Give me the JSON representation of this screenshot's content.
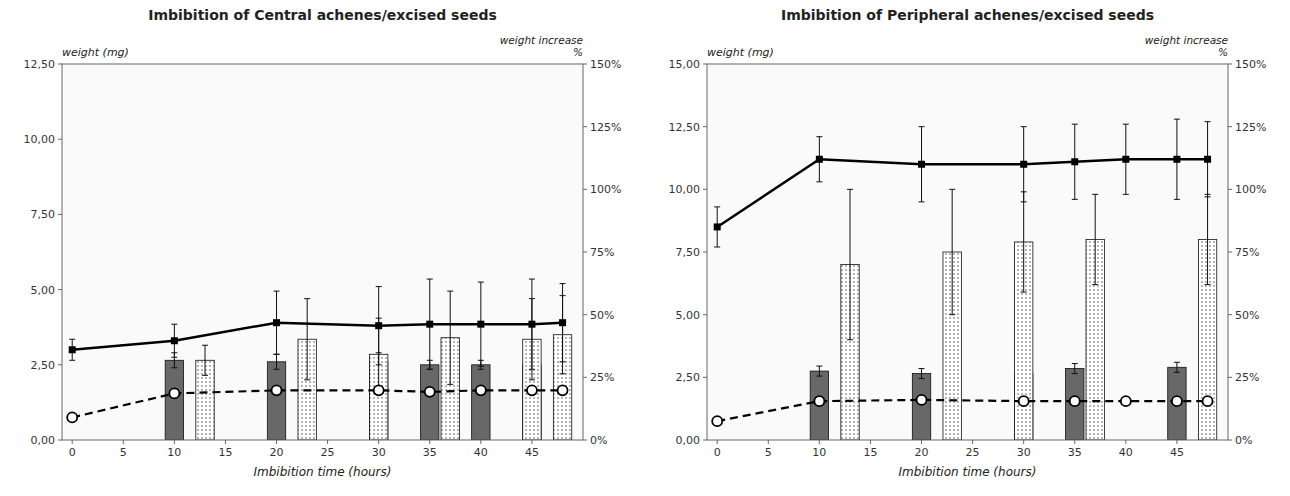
{
  "chart_data": [
    {
      "type": "bar",
      "title": "Imbibition of Central achenes/excised seeds",
      "xlabel": "Imbibition time (hours)",
      "ylabel": "weight (mg)",
      "y2label": "weight increase\n%",
      "grid": false,
      "xlim": [
        -1,
        50
      ],
      "xticks": [
        0,
        5,
        10,
        15,
        20,
        25,
        30,
        35,
        40,
        45
      ],
      "ylim": [
        0,
        12.5
      ],
      "yticks": [
        {
          "value": 0.0,
          "label": "0,00"
        },
        {
          "value": 2.5,
          "label": "2,50"
        },
        {
          "value": 5.0,
          "label": "5,00"
        },
        {
          "value": 7.5,
          "label": "7,50"
        },
        {
          "value": 10.0,
          "label": "10,00"
        },
        {
          "value": 12.5,
          "label": "12,50"
        }
      ],
      "y2lim": [
        0,
        150
      ],
      "y2ticks": [
        {
          "value": 0,
          "label": "0%"
        },
        {
          "value": 25,
          "label": "25%"
        },
        {
          "value": 50,
          "label": "50%"
        },
        {
          "value": 75,
          "label": "75%"
        },
        {
          "value": 100,
          "label": "100%"
        },
        {
          "value": 125,
          "label": "125%"
        },
        {
          "value": 150,
          "label": "150%"
        }
      ],
      "series": [
        {
          "type": "bar",
          "color": "#686868",
          "x": [
            10,
            20,
            30,
            35,
            40,
            45
          ],
          "values": [
            2.65,
            2.6,
            2.6,
            2.5,
            2.5,
            2.5
          ],
          "errors": [
            0.25,
            0.25,
            0.3,
            0.15,
            0.15,
            0.2
          ]
        },
        {
          "type": "bar",
          "color": "white",
          "x": [
            13,
            23,
            30,
            37,
            45,
            48
          ],
          "values": [
            2.65,
            3.35,
            2.85,
            3.4,
            3.35,
            3.5
          ],
          "errors": [
            0.5,
            1.35,
            1.2,
            1.55,
            1.35,
            1.3
          ]
        },
        {
          "type": "line",
          "color": "black",
          "marker": "square",
          "line_style": "solid",
          "x": [
            0,
            10,
            20,
            30,
            35,
            40,
            45,
            48
          ],
          "values": [
            3.0,
            3.3,
            3.9,
            3.8,
            3.85,
            3.85,
            3.85,
            3.9
          ],
          "errors": [
            0.35,
            0.55,
            1.05,
            1.3,
            1.5,
            1.4,
            1.5,
            1.3
          ]
        },
        {
          "type": "line",
          "color": "black",
          "marker": "circle",
          "line_style": "dashed",
          "x": [
            0,
            10,
            20,
            30,
            35,
            40,
            45,
            48
          ],
          "values": [
            0.75,
            1.55,
            1.65,
            1.65,
            1.6,
            1.65,
            1.65,
            1.65
          ],
          "errors": [
            0.08,
            0.12,
            0.1,
            0.1,
            0.08,
            0.08,
            0.08,
            0.08
          ]
        }
      ]
    },
    {
      "type": "bar",
      "title": "Imbibition of Peripheral achenes/excised seeds",
      "xlabel": "Imbibition time (hours)",
      "ylabel": "weight (mg)",
      "y2label": "weight increase\n%",
      "grid": false,
      "xlim": [
        -1,
        50
      ],
      "xticks": [
        0,
        5,
        10,
        15,
        20,
        25,
        30,
        35,
        40,
        45
      ],
      "ylim": [
        0,
        15
      ],
      "yticks": [
        {
          "value": 0.0,
          "label": "0,00"
        },
        {
          "value": 2.5,
          "label": "2,50"
        },
        {
          "value": 5.0,
          "label": "5,00"
        },
        {
          "value": 7.5,
          "label": "7,50"
        },
        {
          "value": 10.0,
          "label": "10,00"
        },
        {
          "value": 12.5,
          "label": "12,50"
        },
        {
          "value": 15.0,
          "label": "15,00"
        }
      ],
      "y2lim": [
        0,
        150
      ],
      "y2ticks": [
        {
          "value": 0,
          "label": "0%"
        },
        {
          "value": 25,
          "label": "25%"
        },
        {
          "value": 50,
          "label": "50%"
        },
        {
          "value": 75,
          "label": "75%"
        },
        {
          "value": 100,
          "label": "100%"
        },
        {
          "value": 125,
          "label": "125%"
        },
        {
          "value": 150,
          "label": "150%"
        }
      ],
      "series": [
        {
          "type": "bar",
          "color": "#686868",
          "x": [
            10,
            20,
            30,
            35,
            45
          ],
          "values": [
            2.75,
            2.65,
            2.65,
            2.85,
            2.9
          ],
          "errors": [
            0.2,
            0.2,
            0.2,
            0.2,
            0.2
          ]
        },
        {
          "type": "bar",
          "color": "white",
          "x": [
            13,
            23,
            30,
            37,
            48
          ],
          "values": [
            7.0,
            7.5,
            7.9,
            8.0,
            8.0
          ],
          "errors": [
            3.0,
            2.5,
            2.0,
            1.8,
            1.8
          ]
        },
        {
          "type": "line",
          "color": "black",
          "marker": "square",
          "line_style": "solid",
          "x": [
            0,
            10,
            20,
            30,
            35,
            40,
            45,
            48
          ],
          "values": [
            8.5,
            11.2,
            11.0,
            11.0,
            11.1,
            11.2,
            11.2,
            11.2
          ],
          "errors": [
            0.8,
            0.9,
            1.5,
            1.5,
            1.5,
            1.4,
            1.6,
            1.5
          ]
        },
        {
          "type": "line",
          "color": "black",
          "marker": "circle",
          "line_style": "dashed",
          "x": [
            0,
            10,
            20,
            30,
            35,
            40,
            45,
            48
          ],
          "values": [
            0.75,
            1.55,
            1.6,
            1.55,
            1.55,
            1.55,
            1.55,
            1.55
          ],
          "errors": [
            0.08,
            0.12,
            0.1,
            0.08,
            0.08,
            0.08,
            0.08,
            0.08
          ]
        }
      ]
    }
  ]
}
